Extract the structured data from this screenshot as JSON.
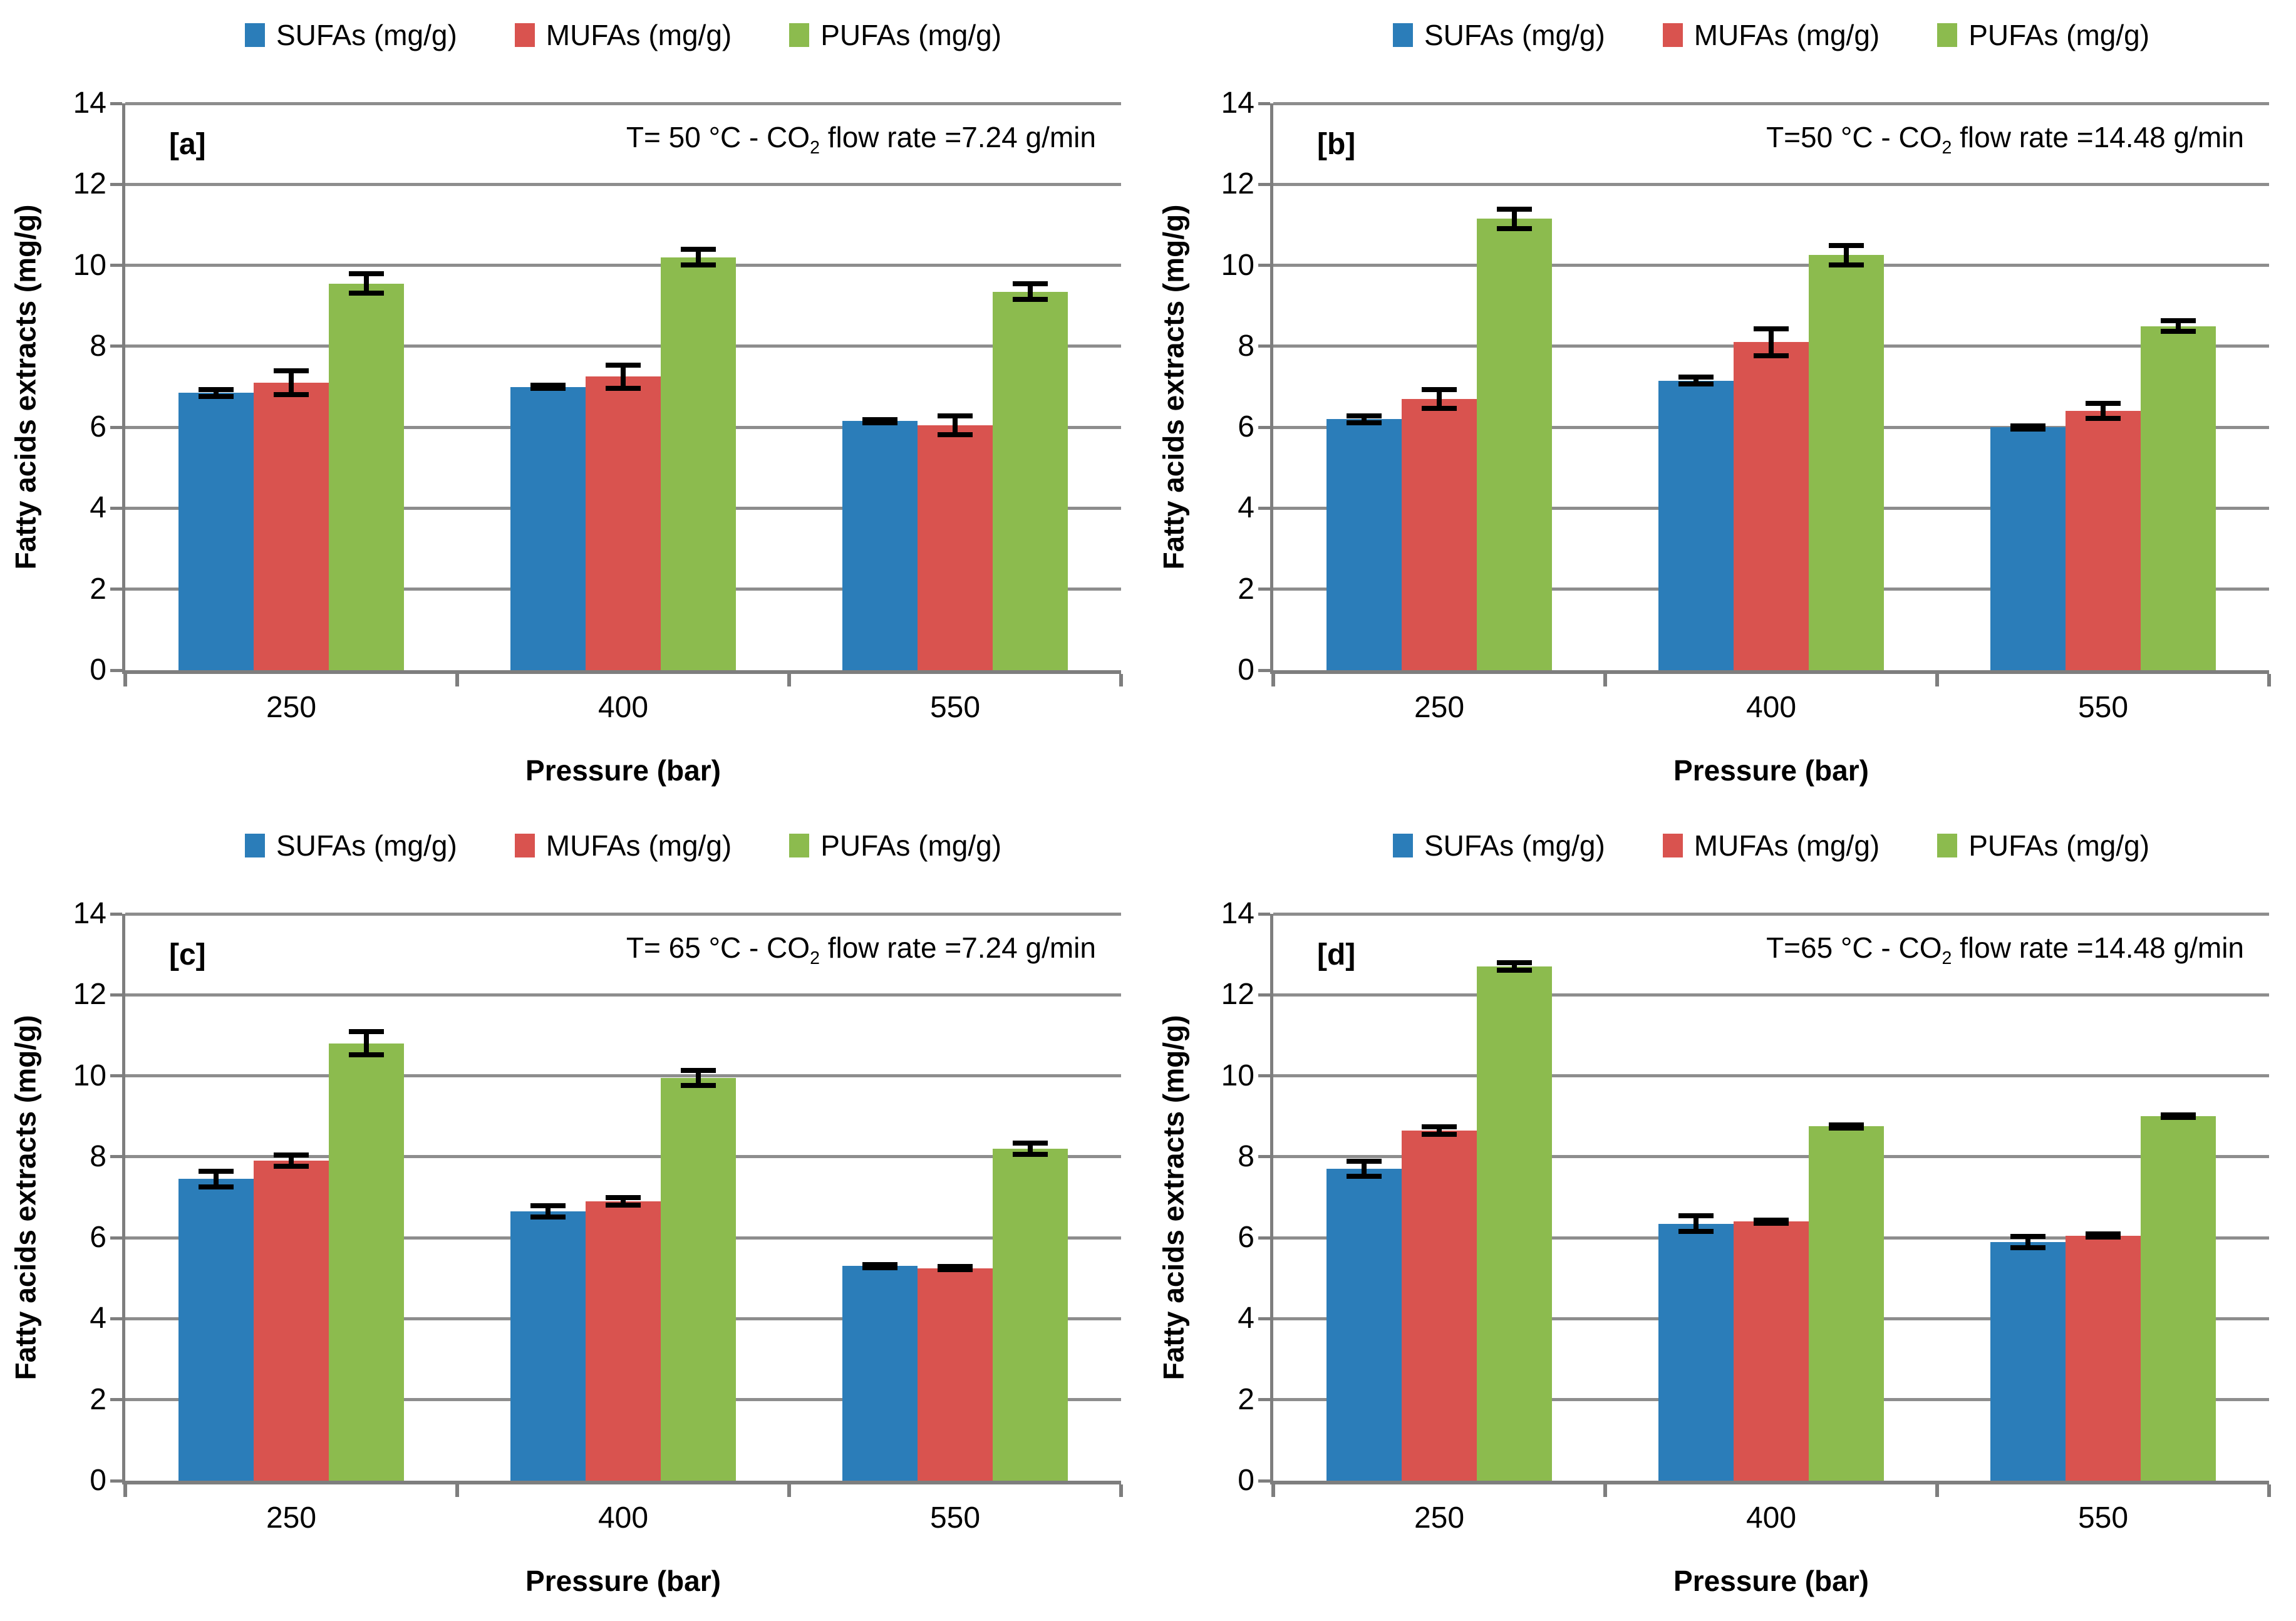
{
  "figure": {
    "background": "#FFFFFF"
  },
  "legend_labels": [
    "SUFAs (mg/g)",
    "MUFAs (mg/g)",
    "PUFAs (mg/g)"
  ],
  "axes_shared": {
    "ylabel": "Fatty acids extracts (mg/g)",
    "xlabel": "Pressure (bar)",
    "ylim": [
      0,
      14
    ],
    "yticks": [
      0,
      2,
      4,
      6,
      8,
      10,
      12,
      14
    ],
    "grid": true,
    "legend_position": "top"
  },
  "colors": {
    "sufas": "#2B7DB9",
    "mufas": "#D9534F",
    "pufas": "#8CBB4E",
    "gridline": "#8D8D8D",
    "axis": "#7E7E7E",
    "error_bar": "#000000"
  },
  "chart_data": [
    {
      "id": "a",
      "type": "bar",
      "panel_label": "[a]",
      "title": "T= 50 °C - CO2 flow rate =7.24 g/min",
      "title_parts": [
        "T= 50 °C - CO",
        "2",
        " flow rate =7.24 g/min"
      ],
      "xlabel": "Pressure (bar)",
      "ylabel": "Fatty acids extracts (mg/g)",
      "ylim": [
        0,
        14
      ],
      "yticks": [
        0,
        2,
        4,
        6,
        8,
        10,
        12,
        14
      ],
      "categories": [
        "250",
        "400",
        "550"
      ],
      "series": [
        {
          "name": "SUFAs (mg/g)",
          "color": "#2B7DB9",
          "values": [
            6.85,
            7.0,
            6.15
          ],
          "errors": [
            0.15,
            0.1,
            0.1
          ]
        },
        {
          "name": "MUFAs (mg/g)",
          "color": "#D9534F",
          "values": [
            7.1,
            7.25,
            6.05
          ],
          "errors": [
            0.35,
            0.35,
            0.3
          ]
        },
        {
          "name": "PUFAs (mg/g)",
          "color": "#8CBB4E",
          "values": [
            9.55,
            10.2,
            9.35
          ],
          "errors": [
            0.3,
            0.25,
            0.25
          ]
        }
      ]
    },
    {
      "id": "b",
      "type": "bar",
      "panel_label": "[b]",
      "title": "T=50 °C - CO2 flow rate =14.48 g/min",
      "title_parts": [
        "T=50 °C - CO",
        "2",
        " flow rate =14.48 g/min"
      ],
      "xlabel": "Pressure (bar)",
      "ylabel": "Fatty acids extracts (mg/g)",
      "ylim": [
        0,
        14
      ],
      "yticks": [
        0,
        2,
        4,
        6,
        8,
        10,
        12,
        14
      ],
      "categories": [
        "250",
        "400",
        "550"
      ],
      "series": [
        {
          "name": "SUFAs (mg/g)",
          "color": "#2B7DB9",
          "values": [
            6.2,
            7.15,
            6.0
          ],
          "errors": [
            0.15,
            0.15,
            0.1
          ]
        },
        {
          "name": "MUFAs (mg/g)",
          "color": "#D9534F",
          "values": [
            6.7,
            8.1,
            6.4
          ],
          "errors": [
            0.3,
            0.4,
            0.25
          ]
        },
        {
          "name": "PUFAs (mg/g)",
          "color": "#8CBB4E",
          "values": [
            11.15,
            10.25,
            8.5
          ],
          "errors": [
            0.3,
            0.3,
            0.2
          ]
        }
      ]
    },
    {
      "id": "c",
      "type": "bar",
      "panel_label": "[c]",
      "title": "T= 65 °C - CO2 flow rate =7.24 g/min",
      "title_parts": [
        "T= 65 °C - CO",
        "2",
        " flow rate =7.24 g/min"
      ],
      "xlabel": "Pressure (bar)",
      "ylabel": "Fatty acids extracts (mg/g)",
      "ylim": [
        0,
        14
      ],
      "yticks": [
        0,
        2,
        4,
        6,
        8,
        10,
        12,
        14
      ],
      "categories": [
        "250",
        "400",
        "550"
      ],
      "series": [
        {
          "name": "SUFAs (mg/g)",
          "color": "#2B7DB9",
          "values": [
            7.45,
            6.65,
            5.3
          ],
          "errors": [
            0.25,
            0.2,
            0.1
          ]
        },
        {
          "name": "MUFAs (mg/g)",
          "color": "#D9534F",
          "values": [
            7.9,
            6.9,
            5.25
          ],
          "errors": [
            0.2,
            0.15,
            0.1
          ]
        },
        {
          "name": "PUFAs (mg/g)",
          "color": "#8CBB4E",
          "values": [
            10.8,
            9.95,
            8.2
          ],
          "errors": [
            0.35,
            0.25,
            0.2
          ]
        }
      ]
    },
    {
      "id": "d",
      "type": "bar",
      "panel_label": "[d]",
      "title": "T=65 °C - CO2 flow rate =14.48 g/min",
      "title_parts": [
        "T=65 °C - CO",
        "2",
        " flow rate =14.48 g/min"
      ],
      "xlabel": "Pressure (bar)",
      "ylabel": "Fatty acids extracts (mg/g)",
      "ylim": [
        0,
        14
      ],
      "yticks": [
        0,
        2,
        4,
        6,
        8,
        10,
        12,
        14
      ],
      "categories": [
        "250",
        "400",
        "550"
      ],
      "series": [
        {
          "name": "SUFAs (mg/g)",
          "color": "#2B7DB9",
          "values": [
            7.7,
            6.35,
            5.9
          ],
          "errors": [
            0.25,
            0.25,
            0.2
          ]
        },
        {
          "name": "MUFAs (mg/g)",
          "color": "#D9534F",
          "values": [
            8.65,
            6.4,
            6.05
          ],
          "errors": [
            0.15,
            0.1,
            0.1
          ]
        },
        {
          "name": "PUFAs (mg/g)",
          "color": "#8CBB4E",
          "values": [
            12.7,
            8.75,
            9.0
          ],
          "errors": [
            0.15,
            0.1,
            0.07
          ]
        }
      ]
    }
  ]
}
